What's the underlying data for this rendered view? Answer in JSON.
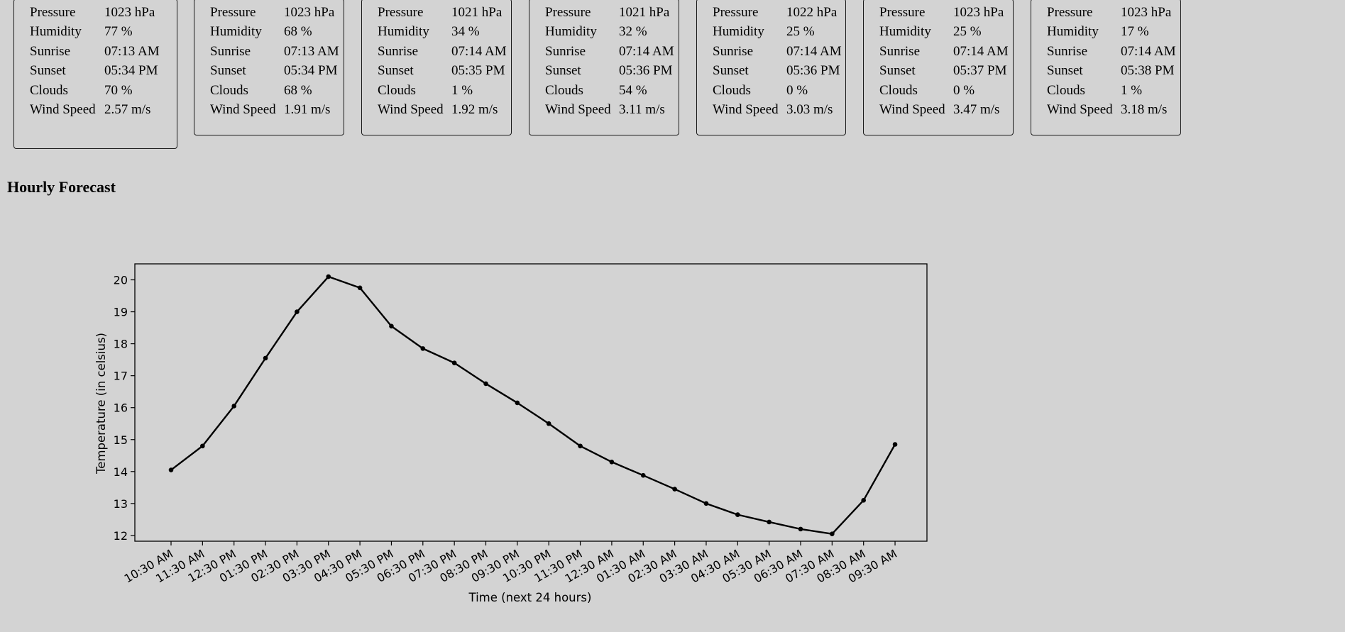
{
  "day_cards": [
    {
      "rows": [
        [
          "Pressure",
          "1023 hPa"
        ],
        [
          "Humidity",
          "77 %"
        ],
        [
          "Sunrise",
          "07:13 AM"
        ],
        [
          "Sunset",
          "05:34 PM"
        ],
        [
          "Clouds",
          "70 %"
        ],
        [
          "Wind Speed",
          "2.57 m/s"
        ]
      ]
    },
    {
      "rows": [
        [
          "Pressure",
          "1023 hPa"
        ],
        [
          "Humidity",
          "68 %"
        ],
        [
          "Sunrise",
          "07:13 AM"
        ],
        [
          "Sunset",
          "05:34 PM"
        ],
        [
          "Clouds",
          "68 %"
        ],
        [
          "Wind Speed",
          "1.91 m/s"
        ]
      ]
    },
    {
      "rows": [
        [
          "Pressure",
          "1021 hPa"
        ],
        [
          "Humidity",
          "34 %"
        ],
        [
          "Sunrise",
          "07:14 AM"
        ],
        [
          "Sunset",
          "05:35 PM"
        ],
        [
          "Clouds",
          "1 %"
        ],
        [
          "Wind Speed",
          "1.92 m/s"
        ]
      ]
    },
    {
      "rows": [
        [
          "Pressure",
          "1021 hPa"
        ],
        [
          "Humidity",
          "32 %"
        ],
        [
          "Sunrise",
          "07:14 AM"
        ],
        [
          "Sunset",
          "05:36 PM"
        ],
        [
          "Clouds",
          "54 %"
        ],
        [
          "Wind Speed",
          "3.11 m/s"
        ]
      ]
    },
    {
      "rows": [
        [
          "Pressure",
          "1022 hPa"
        ],
        [
          "Humidity",
          "25 %"
        ],
        [
          "Sunrise",
          "07:14 AM"
        ],
        [
          "Sunset",
          "05:36 PM"
        ],
        [
          "Clouds",
          "0 %"
        ],
        [
          "Wind Speed",
          "3.03 m/s"
        ]
      ]
    },
    {
      "rows": [
        [
          "Pressure",
          "1023 hPa"
        ],
        [
          "Humidity",
          "25 %"
        ],
        [
          "Sunrise",
          "07:14 AM"
        ],
        [
          "Sunset",
          "05:37 PM"
        ],
        [
          "Clouds",
          "0 %"
        ],
        [
          "Wind Speed",
          "3.47 m/s"
        ]
      ]
    },
    {
      "rows": [
        [
          "Pressure",
          "1023 hPa"
        ],
        [
          "Humidity",
          "17 %"
        ],
        [
          "Sunrise",
          "07:14 AM"
        ],
        [
          "Sunset",
          "05:38 PM"
        ],
        [
          "Clouds",
          "1 %"
        ],
        [
          "Wind Speed",
          "3.18 m/s"
        ]
      ]
    }
  ],
  "hourly": {
    "title": "Hourly Forecast"
  },
  "chart_data": {
    "type": "line",
    "title": "",
    "xlabel": "Time (next 24 hours)",
    "ylabel": "Temperature (in celsius)",
    "categories": [
      "10:30 AM",
      "11:30 AM",
      "12:30 PM",
      "01:30 PM",
      "02:30 PM",
      "03:30 PM",
      "04:30 PM",
      "05:30 PM",
      "06:30 PM",
      "07:30 PM",
      "08:30 PM",
      "09:30 PM",
      "10:30 PM",
      "11:30 PM",
      "12:30 AM",
      "01:30 AM",
      "02:30 AM",
      "03:30 AM",
      "04:30 AM",
      "05:30 AM",
      "06:30 AM",
      "07:30 AM",
      "08:30 AM",
      "09:30 AM"
    ],
    "values": [
      14.05,
      14.8,
      16.05,
      17.55,
      19.0,
      20.1,
      19.75,
      18.55,
      17.85,
      17.4,
      16.75,
      16.15,
      15.5,
      14.8,
      14.3,
      13.88,
      13.45,
      13.0,
      12.65,
      12.42,
      12.2,
      12.05,
      13.1,
      14.85
    ],
    "ylim": [
      11.82,
      20.5
    ],
    "yticks": [
      12,
      13,
      14,
      15,
      16,
      17,
      18,
      19,
      20
    ],
    "grid": false,
    "line_color": "#000000",
    "background": "#d3d3d3"
  }
}
